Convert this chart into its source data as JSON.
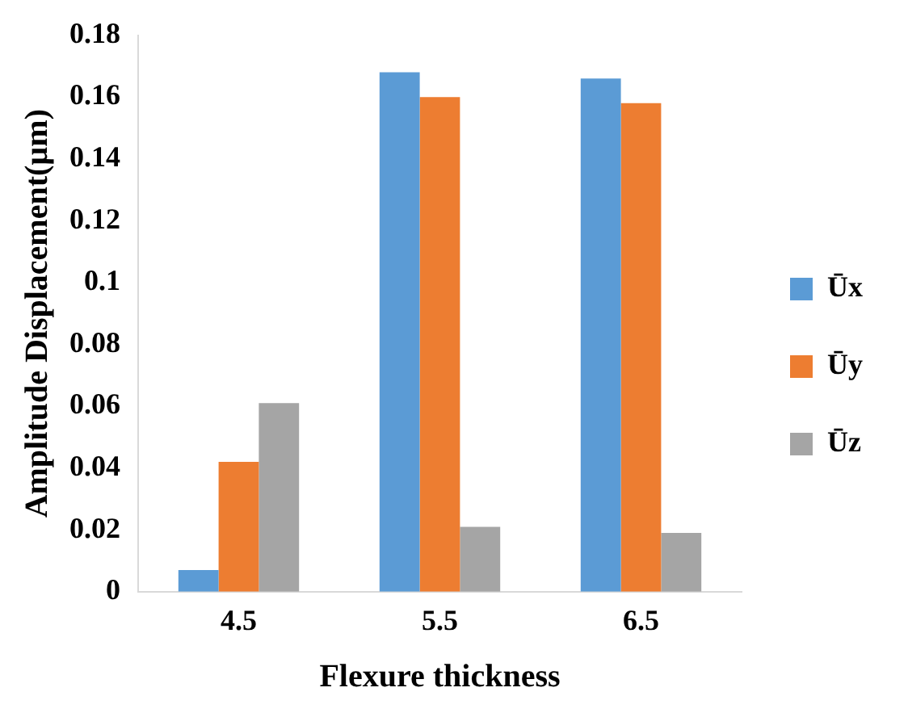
{
  "chart_data": {
    "type": "bar",
    "xlabel": "Flexure thickness",
    "ylabel": "Amplitude Displacement(µm)",
    "categories": [
      "4.5",
      "5.5",
      "6.5"
    ],
    "series": [
      {
        "name": "Ūx",
        "color": "#5b9bd5",
        "values": [
          0.007,
          0.168,
          0.166
        ]
      },
      {
        "name": "Ūy",
        "color": "#ed7d31",
        "values": [
          0.042,
          0.16,
          0.158
        ]
      },
      {
        "name": "Ūz",
        "color": "#a5a5a5",
        "values": [
          0.061,
          0.021,
          0.019
        ]
      }
    ],
    "ylim": [
      0,
      0.18
    ],
    "yticks": [
      0,
      0.02,
      0.04,
      0.06,
      0.08,
      0.1,
      0.12,
      0.14,
      0.16,
      0.18
    ],
    "grid": false,
    "legend": "right"
  }
}
